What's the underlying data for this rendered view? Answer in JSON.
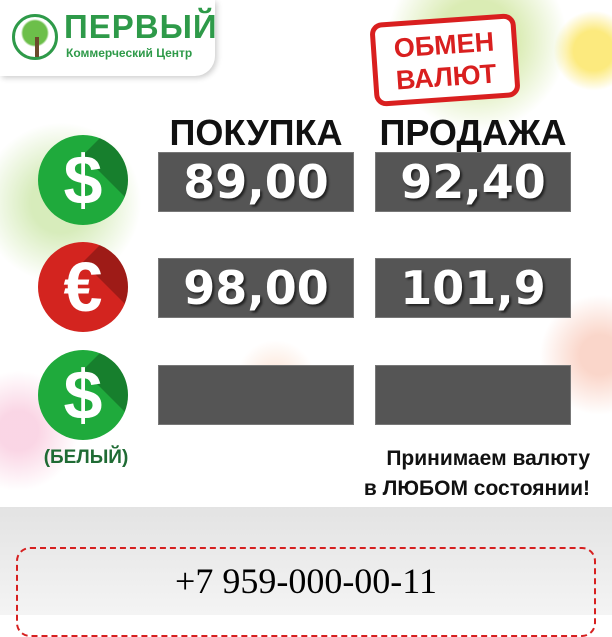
{
  "logo": {
    "name": "ПЕРВЫЙ",
    "subtitle": "Коммерческий Центр"
  },
  "stamp": {
    "line1": "ОБМЕН",
    "line2": "ВАЛЮТ"
  },
  "headers": {
    "buy": "ПОКУПКА",
    "sell": "ПРОДАЖА"
  },
  "rows": [
    {
      "icon": "dollar-icon",
      "color": "#1faa3c",
      "buy": "89,00",
      "sell": "92,40"
    },
    {
      "icon": "euro-icon",
      "color": "#d3241f",
      "buy": "98,00",
      "sell": "101,9"
    },
    {
      "icon": "dollar-icon",
      "color": "#1faa3c",
      "label": "(БЕЛЫЙ)",
      "buy": "",
      "sell": ""
    }
  ],
  "tagline": {
    "line1": "Принимаем валюту",
    "line2": "в ЛЮБОМ состоянии!"
  },
  "phone": "+7 959-000-00-11"
}
